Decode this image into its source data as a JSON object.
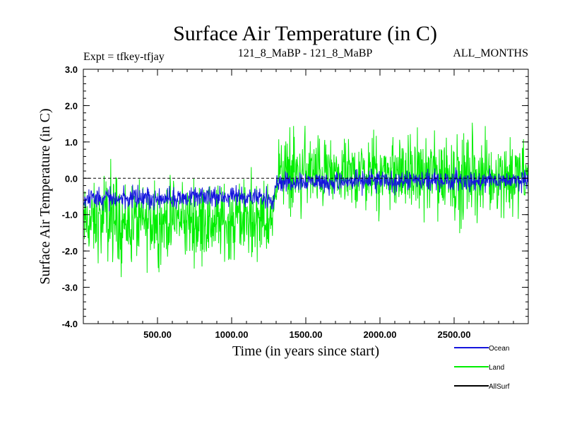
{
  "chart_data": {
    "type": "line",
    "title": "Surface Air Temperature (in C)",
    "subtitle_left": "Expt = tfkey-tfjay",
    "subtitle_center": "121_8_MaBP - 121_8_MaBP",
    "subtitle_right": "ALL_MONTHS",
    "xlabel": "Time (in years since start)",
    "ylabel": "Surface Air Temperature (in C)",
    "xlim": [
      0,
      3000
    ],
    "ylim": [
      -4.0,
      3.0
    ],
    "x_ticks": [
      500,
      1000,
      1500,
      2000,
      2500
    ],
    "x_tick_labels": [
      "500.00",
      "1000.00",
      "1500.00",
      "2000.00",
      "2500.00"
    ],
    "y_ticks": [
      3.0,
      2.0,
      1.0,
      0.0,
      -1.0,
      -2.0,
      -3.0,
      -4.0
    ],
    "y_tick_labels": [
      "3.0",
      "2.0",
      "1.0",
      "0.0",
      "-1.0",
      "-2.0",
      "-3.0",
      "-4.0"
    ],
    "reference_line": 0.0,
    "legend_position": "bottom-right",
    "series": [
      {
        "name": "Land",
        "color": "#00ee00",
        "x": [
          0,
          200,
          400,
          600,
          800,
          1000,
          1200,
          1280,
          1300,
          1400,
          1480,
          1600,
          1800,
          2000,
          2200,
          2400,
          2600,
          2800,
          3000
        ],
        "y_min": [
          -2.7,
          -2.9,
          -3.1,
          -2.7,
          -2.8,
          -2.7,
          -2.6,
          -2.7,
          -0.9,
          -1.3,
          -1.2,
          -1.3,
          -1.4,
          -1.3,
          -1.3,
          -1.6,
          -1.8,
          -1.4,
          -1.4
        ],
        "y_max": [
          0.1,
          0.7,
          0.3,
          0.5,
          0.4,
          0.5,
          0.4,
          0.4,
          1.5,
          1.6,
          2.2,
          1.5,
          1.5,
          1.7,
          1.7,
          1.6,
          1.7,
          1.7,
          1.5
        ],
        "y_mean": [
          -1.2,
          -1.2,
          -1.2,
          -1.2,
          -1.2,
          -1.2,
          -1.2,
          -1.2,
          0.1,
          0.1,
          0.15,
          0.1,
          0.1,
          0.15,
          0.1,
          0.1,
          0.1,
          0.1,
          0.1
        ]
      },
      {
        "name": "Ocean",
        "color": "#1515dd",
        "x": [
          0,
          200,
          400,
          600,
          800,
          1000,
          1200,
          1280,
          1300,
          1400,
          1480,
          1600,
          1800,
          2000,
          2200,
          2400,
          2600,
          2800,
          3000
        ],
        "y_min": [
          -0.95,
          -0.95,
          -0.95,
          -0.95,
          -0.9,
          -0.9,
          -0.95,
          -0.95,
          -0.45,
          -0.5,
          -0.5,
          -0.5,
          -0.55,
          -0.5,
          -0.5,
          -0.45,
          -0.5,
          -0.45,
          -0.45
        ],
        "y_max": [
          -0.2,
          -0.2,
          -0.1,
          -0.2,
          -0.15,
          -0.15,
          -0.15,
          -0.2,
          0.2,
          0.3,
          0.35,
          0.3,
          0.3,
          0.35,
          0.3,
          0.4,
          0.3,
          0.3,
          0.35
        ],
        "y_mean": [
          -0.55,
          -0.55,
          -0.55,
          -0.55,
          -0.5,
          -0.5,
          -0.55,
          -0.55,
          -0.1,
          -0.1,
          -0.05,
          -0.1,
          -0.1,
          -0.05,
          -0.1,
          -0.05,
          -0.1,
          -0.05,
          -0.05
        ]
      },
      {
        "name": "AllSurf",
        "color": "#000000",
        "x": [],
        "y": []
      }
    ]
  }
}
